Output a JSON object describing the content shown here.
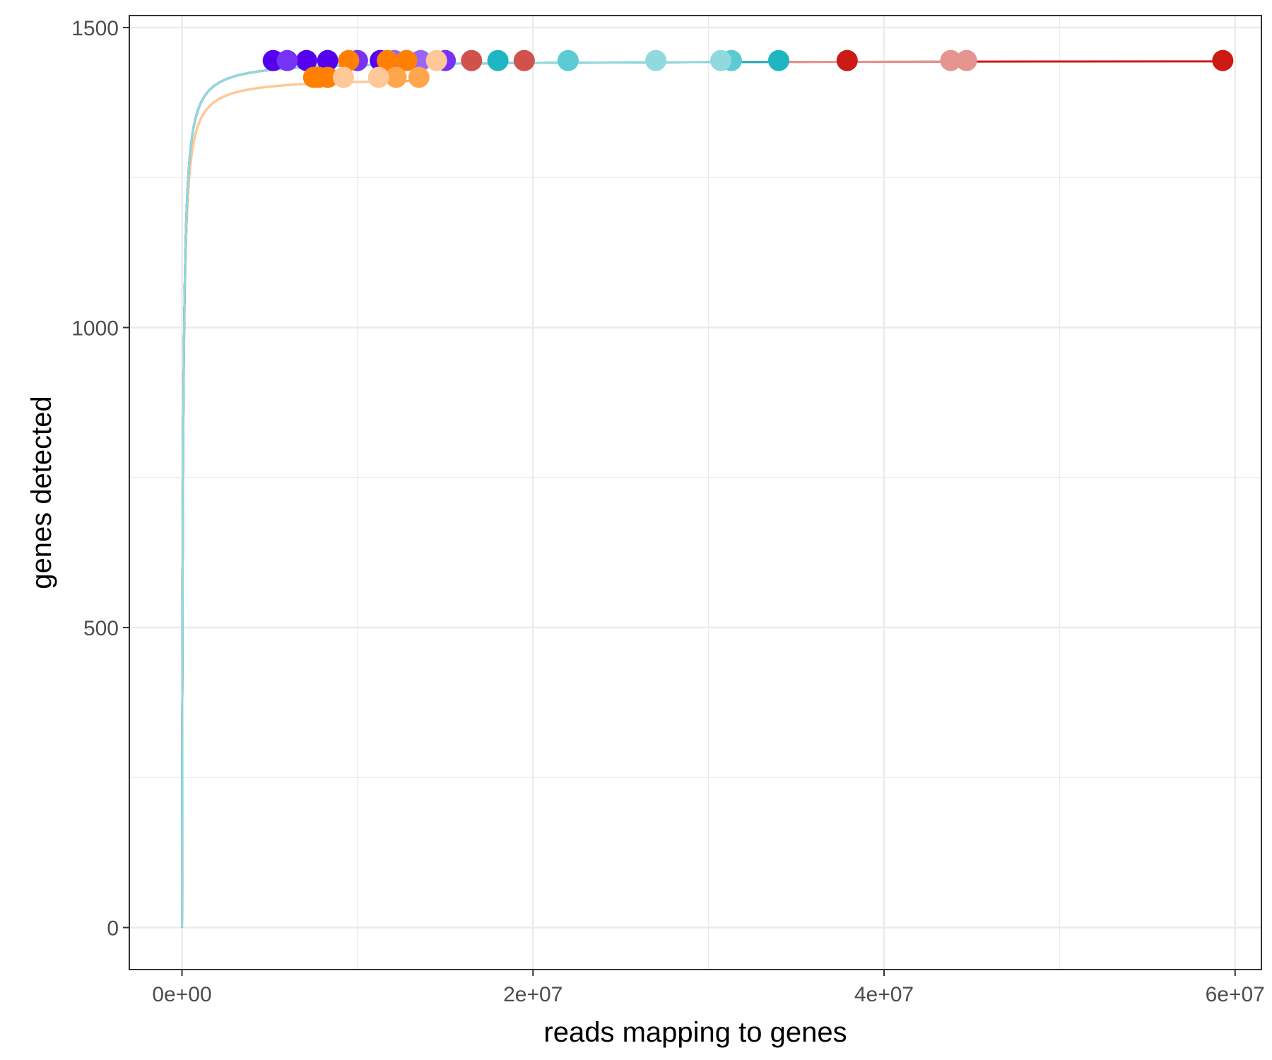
{
  "chart_data": {
    "type": "line",
    "title": "",
    "xlabel": "reads mapping to genes",
    "ylabel": "genes detected",
    "xlim": [
      -3000000,
      61500000
    ],
    "ylim": [
      -70,
      1520
    ],
    "x_ticks": [
      0,
      20000000,
      40000000,
      60000000
    ],
    "x_tick_labels": [
      "0e+00",
      "2e+07",
      "4e+07",
      "6e+07"
    ],
    "y_ticks": [
      0,
      500,
      1000,
      1500
    ],
    "y_tick_labels": [
      "0",
      "500",
      "1000",
      "1500"
    ],
    "grid": true,
    "legend": "none",
    "series": [
      {
        "color": "#5500EE",
        "plateau": 1445,
        "points": [
          5200000,
          7100000,
          8300000,
          11300000
        ]
      },
      {
        "color": "#7733F5",
        "plateau": 1445,
        "points": [
          6000000,
          10000000,
          15000000
        ]
      },
      {
        "color": "#9966F8",
        "plateau": 1445,
        "points": [
          12100000,
          13600000
        ]
      },
      {
        "color": "#FF8000",
        "plateau": 1417,
        "points": [
          7500000,
          7800000,
          8300000
        ]
      },
      {
        "color": "#FF8000",
        "plateau": 1445,
        "points": [
          9500000,
          11700000,
          12800000
        ]
      },
      {
        "color": "#FFA64D",
        "plateau": 1417,
        "points": [
          12200000,
          13500000
        ]
      },
      {
        "color": "#FFC899",
        "plateau": 1417,
        "points": [
          9200000,
          11200000
        ]
      },
      {
        "color": "#FFC899",
        "plateau": 1445,
        "points": [
          14500000
        ]
      },
      {
        "color": "#D1514D",
        "plateau": 1445,
        "points": [
          16500000,
          19500000
        ]
      },
      {
        "color": "#CC1A14",
        "plateau": 1445,
        "points": [
          37900000,
          59300000
        ]
      },
      {
        "color": "#E59490",
        "plateau": 1445,
        "points": [
          43800000,
          44700000
        ]
      },
      {
        "color": "#1FB5C2",
        "plateau": 1445,
        "points": [
          18000000,
          34000000
        ]
      },
      {
        "color": "#5CCAD2",
        "plateau": 1445,
        "points": [
          22000000,
          31300000
        ]
      },
      {
        "color": "#91D9DF",
        "plateau": 1445,
        "points": [
          27000000,
          30700000
        ]
      }
    ]
  }
}
